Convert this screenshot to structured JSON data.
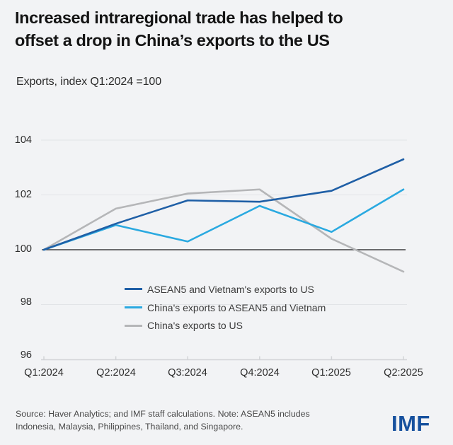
{
  "title": {
    "lines": [
      "Increased intraregional trade has helped to",
      "offset a drop in China’s exports to the US"
    ]
  },
  "subtitle": "Exports, index Q1:2024 =100",
  "source": {
    "lines": [
      "Source: Haver Analytics; and IMF staff calculations. Note: ASEAN5 includes",
      "Indonesia, Malaysia, Philippines, Thailand, and Singapore."
    ]
  },
  "logo_text": "IMF",
  "colors": {
    "background": "#f2f3f5",
    "gridline": "#e2e4e7",
    "baseline": "#3e3e40",
    "axis": "#d2d4d7",
    "dark_blue": "#1f5fa6",
    "light_blue": "#2aa9e0",
    "gray": "#b5b6b8",
    "logo_blue": "#17519e"
  },
  "chart_data": {
    "type": "line",
    "title": "Exports, index Q1:2024 =100",
    "categories": [
      "Q1:2024",
      "Q2:2024",
      "Q3:2024",
      "Q4:2024",
      "Q1:2025",
      "Q2:2025"
    ],
    "series": [
      {
        "name": "ASEAN5 and Vietnam's exports to US",
        "color": "#1f5fa6",
        "values": [
          100,
          100.95,
          101.8,
          101.75,
          102.15,
          103.3
        ]
      },
      {
        "name": "China's exports to ASEAN5 and Vietnam",
        "color": "#2aa9e0",
        "values": [
          100,
          100.9,
          100.3,
          101.6,
          100.65,
          102.2
        ]
      },
      {
        "name": "China's exports to US",
        "color": "#b5b6b8",
        "values": [
          100,
          101.5,
          102.05,
          102.2,
          100.4,
          99.2
        ]
      }
    ],
    "ylim": [
      96,
      104
    ],
    "yticks": [
      104,
      102,
      100,
      98,
      96
    ],
    "baseline_value": 100,
    "grid": "horizontal",
    "legend_position": "inside-center-left"
  }
}
